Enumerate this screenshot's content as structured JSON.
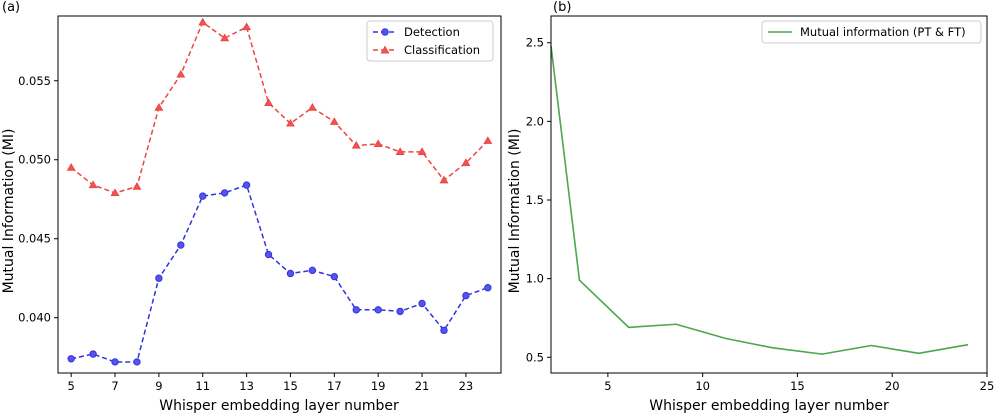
{
  "chart_data": [
    {
      "type": "line",
      "panel_label": "(a)",
      "xlabel": "Whisper embedding layer number",
      "ylabel": "Mutual Information (MI)",
      "xlim": [
        4.4,
        24.6
      ],
      "ylim": [
        0.0365,
        0.0591
      ],
      "xticks": [
        5,
        7,
        9,
        11,
        13,
        15,
        17,
        19,
        21,
        23
      ],
      "xtick_labels": [
        "5",
        "7",
        "9",
        "11",
        "13",
        "15",
        "17",
        "19",
        "21",
        "23"
      ],
      "yticks": [
        0.04,
        0.045,
        0.05,
        0.055
      ],
      "ytick_labels": [
        "0.040",
        "0.045",
        "0.050",
        "0.055"
      ],
      "legend_position": "top-right",
      "x": [
        5,
        6,
        7,
        8,
        9,
        10,
        11,
        12,
        13,
        14,
        15,
        16,
        17,
        18,
        19,
        20,
        21,
        22,
        23,
        24
      ],
      "series": [
        {
          "name": "Detection",
          "color": "#3333dd",
          "marker": "circle",
          "linestyle": "dashed",
          "values": [
            0.0374,
            0.0377,
            0.0372,
            0.0372,
            0.0425,
            0.0446,
            0.0477,
            0.0479,
            0.0484,
            0.044,
            0.0428,
            0.043,
            0.0426,
            0.0405,
            0.0405,
            0.0404,
            0.0409,
            0.0392,
            0.0414,
            0.0419
          ]
        },
        {
          "name": "Classification",
          "color": "#ee4444",
          "marker": "triangle",
          "linestyle": "dashed",
          "values": [
            0.0495,
            0.0484,
            0.0479,
            0.0483,
            0.0533,
            0.0554,
            0.0587,
            0.0577,
            0.0584,
            0.0536,
            0.0523,
            0.0533,
            0.0524,
            0.0509,
            0.051,
            0.0505,
            0.0505,
            0.0487,
            0.0498,
            0.0512
          ]
        }
      ]
    },
    {
      "type": "line",
      "panel_label": "(b)",
      "xlabel": "Whisper embedding layer number",
      "ylabel": "Mutual Information (MI)",
      "xlim": [
        2,
        25
      ],
      "ylim": [
        0.4,
        2.67
      ],
      "xticks": [
        5,
        10,
        15,
        20,
        25
      ],
      "xtick_labels": [
        "5",
        "10",
        "15",
        "20",
        "25"
      ],
      "yticks": [
        0.5,
        1.0,
        1.5,
        2.0,
        2.5
      ],
      "ytick_labels": [
        "0.5",
        "1.0",
        "1.5",
        "2.0",
        "2.5"
      ],
      "legend_position": "top-right",
      "series": [
        {
          "name": "Mutual information (PT & FT)",
          "color": "#4ca64c",
          "marker": "none",
          "linestyle": "solid",
          "x": [
            2.0,
            3.5,
            6.1,
            8.6,
            11.2,
            13.7,
            16.3,
            18.9,
            21.4,
            24.0
          ],
          "values": [
            2.48,
            0.99,
            0.69,
            0.71,
            0.62,
            0.56,
            0.52,
            0.575,
            0.525,
            0.58
          ]
        }
      ]
    }
  ]
}
